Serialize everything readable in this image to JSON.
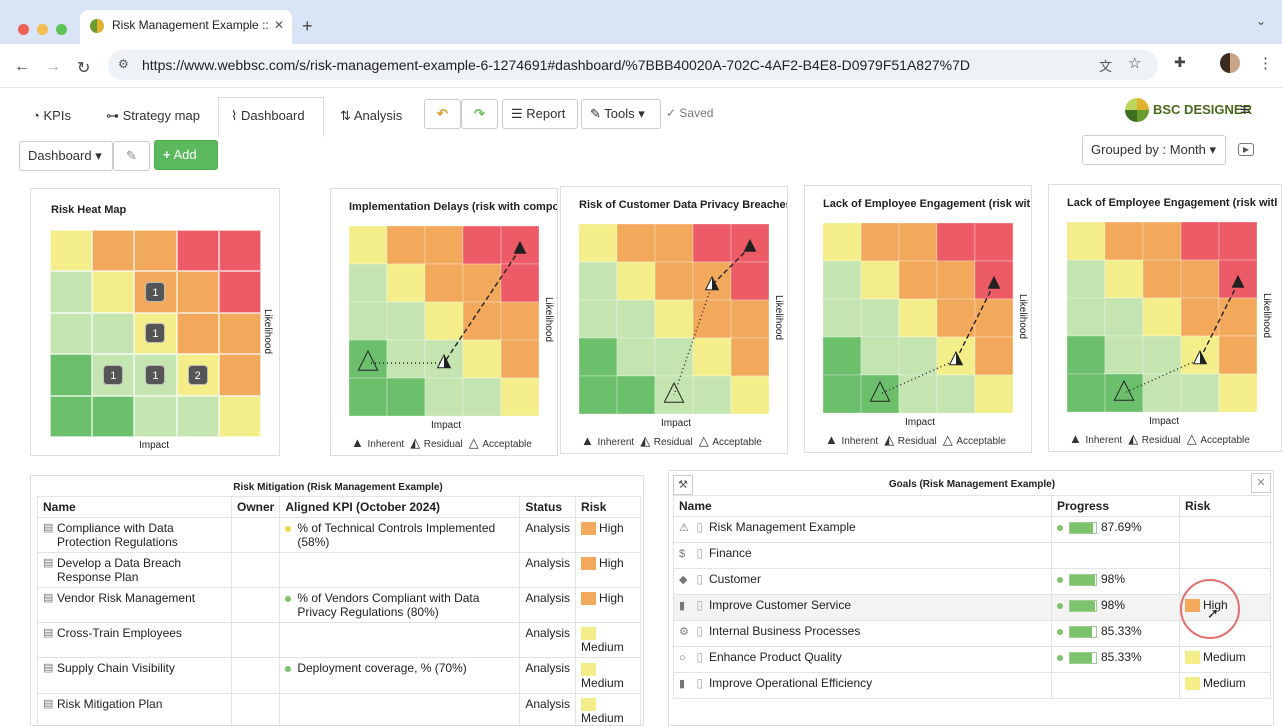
{
  "browser": {
    "tab_title": "Risk Management Example ::",
    "url": "https://www.webbsc.com/s/risk-management-example-6-1274691#dashboard/%7BBB40020A-702C-4AF2-B4E8-D0979F51A827%7D"
  },
  "nav": {
    "kpis": "KPIs",
    "strategy_map": "Strategy map",
    "dashboard": "Dashboard",
    "analysis": "Analysis",
    "report": "Report",
    "tools": "Tools",
    "saved": "Saved",
    "brand": "BSC DESIGNER"
  },
  "toolbar": {
    "dashboard_select": "Dashboard",
    "add": "Add",
    "grouped_by": "Grouped by : Month"
  },
  "colors": {
    "green_dark": "#6cc06c",
    "green_light": "#c4e4b0",
    "yellow": "#f3ee8a",
    "orange": "#f2a95c",
    "red": "#ec5b66",
    "accent_green": "#5cb85c"
  },
  "heatmap": {
    "title": "Risk Heat Map",
    "xlabel": "Impact",
    "ylabel": "Likelihood",
    "grid": [
      [
        "Y",
        "O",
        "O",
        "R",
        "R"
      ],
      [
        "L",
        "Y",
        "O",
        "O",
        "R"
      ],
      [
        "L",
        "L",
        "Y",
        "O",
        "O"
      ],
      [
        "G",
        "L",
        "L",
        "Y",
        "O"
      ],
      [
        "G",
        "G",
        "L",
        "L",
        "Y"
      ]
    ],
    "markers": [
      {
        "row": 1,
        "col": 2,
        "n": "1"
      },
      {
        "row": 2,
        "col": 2,
        "n": "1"
      },
      {
        "row": 3,
        "col": 1,
        "n": "1"
      },
      {
        "row": 3,
        "col": 2,
        "n": "1"
      },
      {
        "row": 3,
        "col": 3,
        "n": "2"
      }
    ]
  },
  "risk_charts": [
    {
      "title": "Implementation Delays (risk with compou",
      "inherent": {
        "row": 0,
        "col": 4
      },
      "residual": {
        "row": 3,
        "col": 2
      },
      "acceptable": {
        "row": 3,
        "col": 0
      }
    },
    {
      "title": "Risk of Customer Data Privacy Breaches",
      "inherent": {
        "row": 0,
        "col": 4
      },
      "residual": {
        "row": 1,
        "col": 3
      },
      "acceptable": {
        "row": 4,
        "col": 2
      }
    },
    {
      "title": "Lack of Employee Engagement (risk with",
      "inherent": {
        "row": 1,
        "col": 4
      },
      "residual": {
        "row": 3,
        "col": 3
      },
      "acceptable": {
        "row": 4,
        "col": 1
      }
    },
    {
      "title": "Lack of Employee Engagement (risk with",
      "inherent": {
        "row": 1,
        "col": 4
      },
      "residual": {
        "row": 3,
        "col": 3
      },
      "acceptable": {
        "row": 4,
        "col": 1
      }
    }
  ],
  "legend": {
    "inherent": "Inherent",
    "residual": "Residual",
    "acceptable": "Acceptable",
    "impact": "Impact",
    "likelihood": "Likelihood"
  },
  "mitigation": {
    "title": "Risk Mitigation (Risk Management Example)",
    "headers": [
      "Name",
      "Owner",
      "Aligned KPI (October 2024)",
      "Status",
      "Risk"
    ],
    "rows": [
      {
        "name": "Compliance with Data Protection Regulations",
        "owner": "",
        "kpi": "% of Technical Controls Implemented (58%)",
        "dot": "#f0d64a",
        "status": "Analysis",
        "risk": "High",
        "color": "#f2a95c"
      },
      {
        "name": "Develop a Data Breach Response Plan",
        "owner": "",
        "kpi": "",
        "dot": "",
        "status": "Analysis",
        "risk": "High",
        "color": "#f2a95c"
      },
      {
        "name": "Vendor Risk Management",
        "owner": "",
        "kpi": "% of Vendors Compliant with Data Privacy Regulations (80%)",
        "dot": "#7cc36b",
        "status": "Analysis",
        "risk": "High",
        "color": "#f2a95c"
      },
      {
        "name": "Cross-Train Employees",
        "owner": "",
        "kpi": "",
        "dot": "",
        "status": "Analysis",
        "risk": "Medium",
        "color": "#f3ee8a"
      },
      {
        "name": "Supply Chain Visibility",
        "owner": "",
        "kpi": "Deployment coverage, % (70%)",
        "dot": "#7cc36b",
        "status": "Analysis",
        "risk": "Medium",
        "color": "#f3ee8a"
      },
      {
        "name": "Risk Mitigation Plan",
        "owner": "",
        "kpi": "",
        "dot": "",
        "status": "Analysis",
        "risk": "Medium",
        "color": "#f3ee8a"
      }
    ]
  },
  "goals": {
    "title": "Goals (Risk Management Example)",
    "headers": [
      "Name",
      "Progress",
      "Risk"
    ],
    "rows": [
      {
        "icon": "⚠",
        "name": "Risk Management Example",
        "progress": "87.69%",
        "fill": 0.88,
        "risk": "",
        "color": ""
      },
      {
        "icon": "$",
        "name": "Finance",
        "progress": "",
        "fill": 0,
        "risk": "",
        "color": ""
      },
      {
        "icon": "◆",
        "name": "Customer",
        "progress": "98%",
        "fill": 0.98,
        "risk": "",
        "color": ""
      },
      {
        "icon": "▮",
        "name": "Improve Customer Service",
        "progress": "98%",
        "fill": 0.98,
        "risk": "High",
        "color": "#f2a95c"
      },
      {
        "icon": "⚙",
        "name": "Internal Business Processes",
        "progress": "85.33%",
        "fill": 0.85,
        "risk": "",
        "color": ""
      },
      {
        "icon": "○",
        "name": "Enhance Product Quality",
        "progress": "85.33%",
        "fill": 0.85,
        "risk": "Medium",
        "color": "#f3ee8a"
      },
      {
        "icon": "▮",
        "name": "Improve Operational Efficiency",
        "progress": "",
        "fill": 0,
        "risk": "Medium",
        "color": "#f3ee8a"
      }
    ]
  }
}
